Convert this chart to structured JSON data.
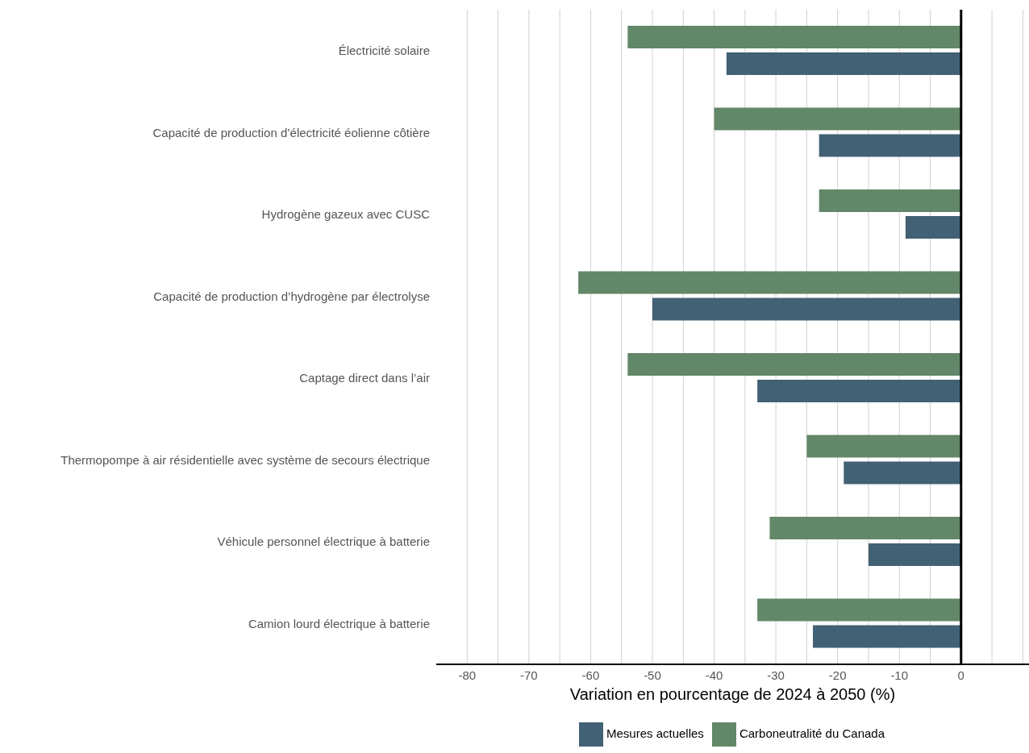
{
  "chart_data": {
    "type": "bar",
    "orientation": "horizontal",
    "xlabel": "Variation en pourcentage de 2024 à 2050 (%)",
    "categories": [
      "Électricité solaire",
      "Capacité de production d’électricité éolienne côtière",
      "Hydrogène gazeux avec CUSC",
      "Capacité de production d’hydrogène par électrolyse",
      "Captage direct dans l’air",
      "Thermopompe à air résidentielle avec système de secours électrique",
      "Véhicule personnel électrique à batterie",
      "Camion lourd électrique à batterie"
    ],
    "series": [
      {
        "name": "Mesures actuelles",
        "color": "#426174",
        "values": [
          -38,
          -23,
          -9,
          -50,
          -33,
          -19,
          -15,
          -24
        ]
      },
      {
        "name": "Carboneutralité du Canada",
        "color": "#628769",
        "values": [
          -54,
          -40,
          -23,
          -62,
          -54,
          -25,
          -31,
          -33
        ]
      }
    ],
    "xlim": [
      -85,
      11
    ],
    "xticks": [
      -80,
      {
        "value": -75,
        "label": null
      },
      -70,
      {
        "value": -65,
        "label": null
      },
      -60,
      {
        "value": -55,
        "label": null
      },
      -50,
      {
        "value": -45,
        "label": null
      },
      -40,
      {
        "value": -35,
        "label": null
      },
      -30,
      {
        "value": -25,
        "label": null
      },
      -20,
      {
        "value": -15,
        "label": null
      },
      -10,
      {
        "value": -5,
        "label": null
      },
      0,
      {
        "value": 5,
        "label": null
      },
      {
        "value": 10,
        "label": null
      }
    ],
    "grid": "x",
    "legend": "bottom",
    "ref_lines": [
      {
        "axis": "x",
        "value": 0,
        "color": "#000000"
      }
    ]
  }
}
